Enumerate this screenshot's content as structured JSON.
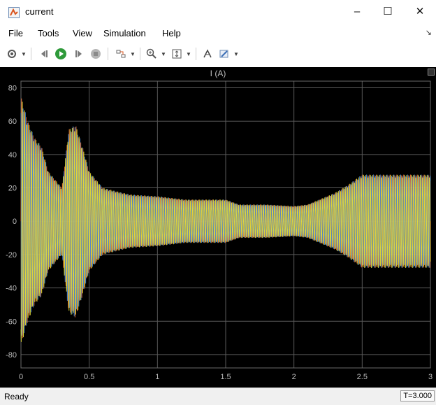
{
  "window": {
    "title": "current",
    "minimize": "–",
    "maximize": "☐",
    "close": "✕"
  },
  "menu": [
    "File",
    "Tools",
    "View",
    "Simulation",
    "Help"
  ],
  "toolbar_icons": [
    "gear-icon",
    "step-back-icon",
    "run-icon",
    "step-forward-icon",
    "stop-icon",
    "highlight-icon",
    "zoom-icon",
    "fit-axes-icon",
    "cursor-measure-icon",
    "style-icon"
  ],
  "status": {
    "text": "Ready",
    "time": "T=3.000"
  },
  "chart_data": {
    "type": "line",
    "title": "I (A)",
    "xlabel": "",
    "ylabel": "",
    "xlim": [
      0,
      3
    ],
    "ylim": [
      -88,
      84
    ],
    "xticks": [
      "0",
      "0.5",
      "1",
      "1.5",
      "2",
      "2.5",
      "3"
    ],
    "yticks": [
      "80",
      "60",
      "40",
      "20",
      "0",
      "-20",
      "-40",
      "-60",
      "-80"
    ],
    "grid": true,
    "background": "#000000",
    "series_colors": [
      "#e8723a",
      "#4a8fd8",
      "#e8e23a"
    ],
    "envelope": {
      "t": [
        0,
        0.05,
        0.1,
        0.15,
        0.2,
        0.25,
        0.3,
        0.35,
        0.4,
        0.45,
        0.5,
        0.6,
        0.7,
        0.8,
        1.0,
        1.2,
        1.5,
        1.6,
        1.8,
        2.0,
        2.1,
        2.3,
        2.4,
        2.5,
        2.6,
        2.8,
        3.0
      ],
      "amp": [
        75,
        60,
        50,
        45,
        30,
        25,
        20,
        55,
        58,
        45,
        30,
        20,
        18,
        16,
        15,
        13,
        13,
        10,
        10,
        9,
        10,
        17,
        22,
        28,
        28,
        28,
        28
      ]
    }
  }
}
